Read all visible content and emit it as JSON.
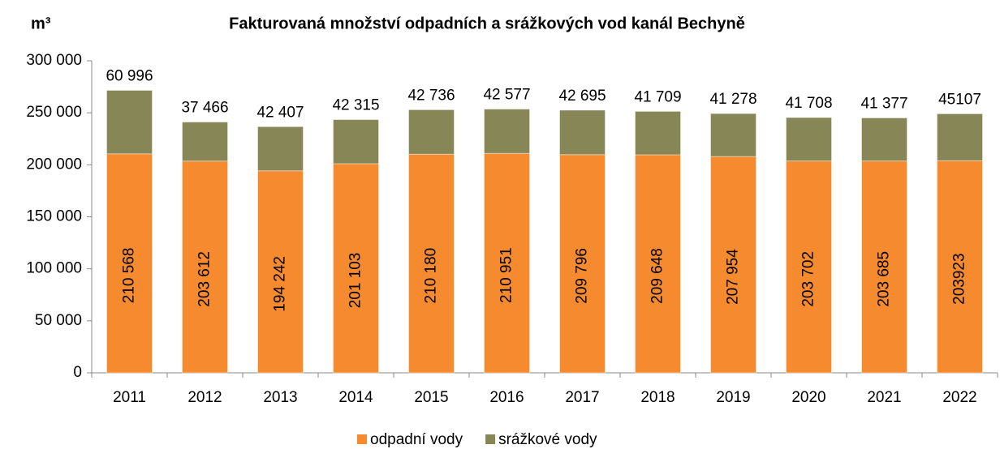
{
  "chart_data": {
    "type": "bar",
    "stacked": true,
    "title": "Fakturovaná množství odpadních a srážkových vod kanál Bechyně",
    "y_label": "m³",
    "categories": [
      "2011",
      "2012",
      "2013",
      "2014",
      "2015",
      "2016",
      "2017",
      "2018",
      "2019",
      "2020",
      "2021",
      "2022"
    ],
    "series": [
      {
        "name": "odpadní vody",
        "color": "#f58a2e",
        "values": [
          210568,
          203612,
          194242,
          201103,
          210180,
          210951,
          209796,
          209648,
          207954,
          203702,
          203685,
          203923
        ],
        "value_labels": [
          "210 568",
          "203 612",
          "194 242",
          "201 103",
          "210 180",
          "210 951",
          "209 796",
          "209 648",
          "207 954",
          "203 702",
          "203 685",
          "203923"
        ]
      },
      {
        "name": "srážkové vody",
        "color": "#878656",
        "values": [
          60996,
          37466,
          42407,
          42315,
          42736,
          42577,
          42695,
          41709,
          41278,
          41708,
          41377,
          45107
        ],
        "value_labels": [
          "60 996",
          "37 466",
          "42 407",
          "42 315",
          "42 736",
          "42 577",
          "42 695",
          "41 709",
          "41 278",
          "41 708",
          "41 377",
          "45107"
        ]
      }
    ],
    "ylim": [
      0,
      300000
    ],
    "yticks": [
      0,
      {
        "value": 50000,
        "label": "50 000"
      },
      {
        "value": 100000,
        "label": "100 000"
      },
      {
        "value": 150000,
        "label": "150 000"
      },
      {
        "value": 200000,
        "label": "200 000"
      },
      {
        "value": 250000,
        "label": "250 000"
      },
      {
        "value": 300000,
        "label": "300 000"
      }
    ],
    "legend": "bottom"
  }
}
